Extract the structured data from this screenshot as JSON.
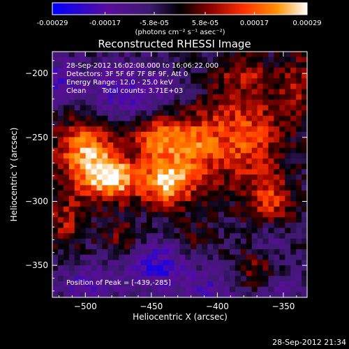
{
  "colorbar": {
    "tick_labels": [
      "-0.00029",
      "-0.00017",
      "-5.8e-05",
      "5.8e-05",
      "0.00017",
      "0.00029"
    ],
    "unit_label": "(photons cm⁻² s⁻¹ asec⁻²)",
    "range": [
      -0.00029,
      0.00029
    ]
  },
  "chart_data": {
    "type": "heatmap",
    "title": "Reconstructed RHESSI Image",
    "xlabel": "Heliocentric X (arcsec)",
    "ylabel": "Heliocentric Y (arcsec)",
    "xlim": [
      -525,
      -332
    ],
    "ylim": [
      -375,
      -183
    ],
    "xticks": [
      -500,
      -450,
      -400,
      -350
    ],
    "yticks": [
      -200,
      -250,
      -300,
      -350
    ],
    "colormap_stops": [
      "#0000ff",
      "#5a0d9a",
      "#3d1a70",
      "#000000",
      "#8a0000",
      "#ff3000",
      "#ff9000",
      "#ffffff"
    ],
    "annotations": {
      "time_range": "28-Sep-2012 16:02:08.000 to 16:06:22.000",
      "detectors": "Detectors: 3F 5F 6F 7F 8F 9F, Att 0",
      "energy_range": "Energy Range: 12.0 - 25.0 keV",
      "clean": "Clean",
      "total_counts": "Total counts: 3.71E+03",
      "peak": "Position of Peak = [-439,-285]"
    },
    "peak": {
      "x": -439,
      "y": -285
    },
    "sources": [
      {
        "x": -500,
        "y": -262,
        "amp": 0.00026,
        "sx": 16,
        "sy": 20
      },
      {
        "x": -478,
        "y": -282,
        "amp": 0.00028,
        "sx": 14,
        "sy": 12
      },
      {
        "x": -439,
        "y": -285,
        "amp": 0.00029,
        "sx": 13,
        "sy": 13
      },
      {
        "x": -445,
        "y": -250,
        "amp": 0.00022,
        "sx": 14,
        "sy": 12
      },
      {
        "x": -418,
        "y": -258,
        "amp": 0.00017,
        "sx": 14,
        "sy": 22
      },
      {
        "x": -380,
        "y": -250,
        "amp": 0.0002,
        "sx": 20,
        "sy": 26
      },
      {
        "x": -360,
        "y": -300,
        "amp": 0.00016,
        "sx": 12,
        "sy": 14
      },
      {
        "x": -515,
        "y": -315,
        "amp": 0.00012,
        "sx": 10,
        "sy": 14
      },
      {
        "x": -470,
        "y": -330,
        "amp": 0.0001,
        "sx": 12,
        "sy": 10
      },
      {
        "x": -420,
        "y": -330,
        "amp": 7e-05,
        "sx": 10,
        "sy": 10
      },
      {
        "x": -372,
        "y": -352,
        "amp": 0.0001,
        "sx": 10,
        "sy": 10
      },
      {
        "x": -340,
        "y": -210,
        "amp": 0.00012,
        "sx": 10,
        "sy": 18
      },
      {
        "x": -380,
        "y": -200,
        "amp": 0.00011,
        "sx": 14,
        "sy": 10
      },
      {
        "x": -470,
        "y": -215,
        "amp": -0.00014,
        "sx": 28,
        "sy": 18
      },
      {
        "x": -520,
        "y": -205,
        "amp": -0.00012,
        "sx": 10,
        "sy": 12
      },
      {
        "x": -445,
        "y": -350,
        "amp": -0.00018,
        "sx": 18,
        "sy": 14
      },
      {
        "x": -500,
        "y": -365,
        "amp": -0.00012,
        "sx": 18,
        "sy": 12
      },
      {
        "x": -405,
        "y": -370,
        "amp": -0.00013,
        "sx": 14,
        "sy": 10
      },
      {
        "x": -360,
        "y": -330,
        "amp": -8e-05,
        "sx": 10,
        "sy": 10
      },
      {
        "x": -350,
        "y": -370,
        "amp": -9e-05,
        "sx": 12,
        "sy": 10
      }
    ]
  },
  "footer": {
    "timestamp": "28-Sep-2012 21:34"
  }
}
